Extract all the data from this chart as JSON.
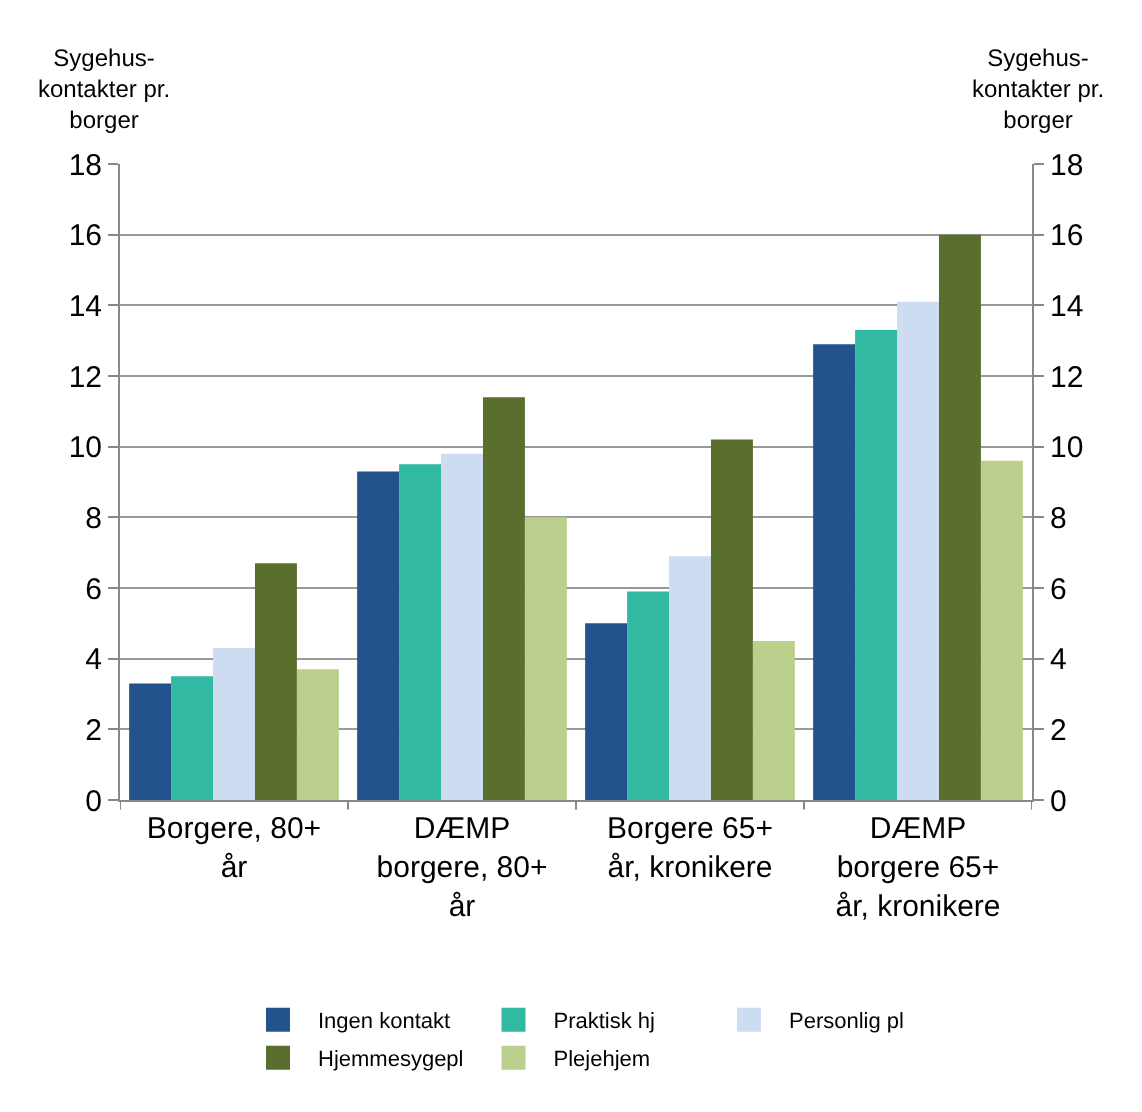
{
  "chart_data": {
    "type": "bar",
    "ylabel": "Sygehus-\nkontakter pr.\nborger",
    "y2label": "Sygehus-\nkontakter pr.\nborger",
    "categories": [
      "Borgere, 80+\når",
      "DÆMP\nborgere, 80+\når",
      "Borgere 65+\når, kronikere",
      "DÆMP\nborgere 65+\når, kronikere"
    ],
    "series": [
      {
        "name": "Ingen kontakt",
        "color": "#23538c",
        "values": [
          3.3,
          9.3,
          5.0,
          12.9
        ]
      },
      {
        "name": "Praktisk hj",
        "color": "#31b9a2",
        "values": [
          3.5,
          9.5,
          5.9,
          13.3
        ]
      },
      {
        "name": "Personlig pl",
        "color": "#cddcf1",
        "values": [
          4.3,
          9.8,
          6.9,
          14.1
        ]
      },
      {
        "name": "Hjemmesygepl",
        "color": "#5a6e2e",
        "values": [
          6.7,
          11.4,
          10.2,
          16.0
        ]
      },
      {
        "name": "Plejehjem",
        "color": "#bbd08c",
        "values": [
          3.7,
          8.0,
          4.5,
          9.6
        ]
      }
    ],
    "ylim": [
      0,
      18
    ],
    "yticks": [
      0,
      2,
      4,
      6,
      8,
      10,
      12,
      14,
      16,
      18
    ],
    "y2lim": [
      0,
      18
    ],
    "y2ticks": [
      0,
      2,
      4,
      6,
      8,
      10,
      12,
      14,
      16,
      18
    ],
    "grid": "y",
    "legend": "bottom"
  }
}
